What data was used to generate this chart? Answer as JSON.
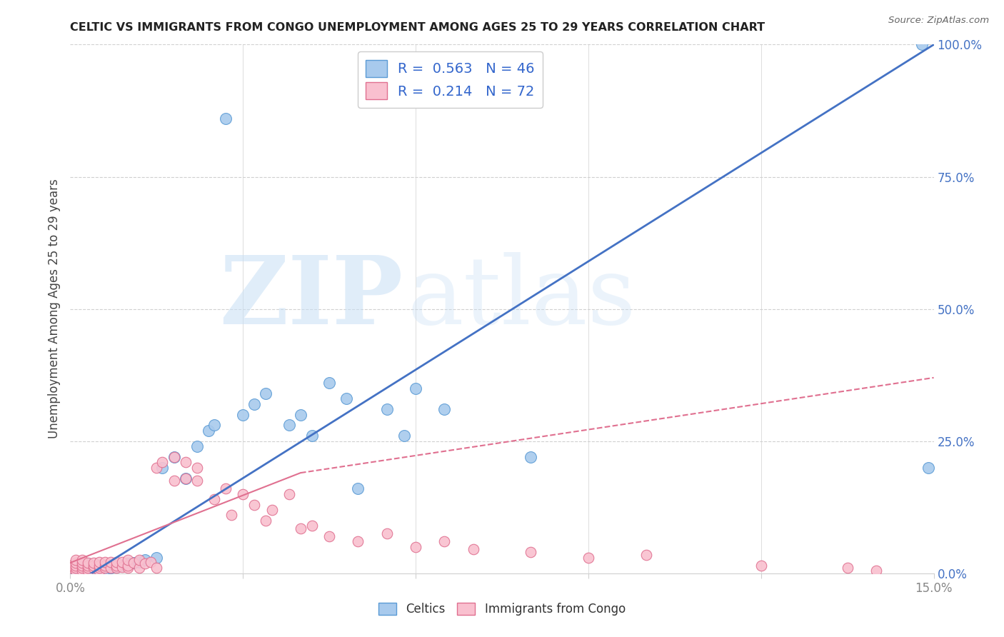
{
  "title": "CELTIC VS IMMIGRANTS FROM CONGO UNEMPLOYMENT AMONG AGES 25 TO 29 YEARS CORRELATION CHART",
  "source": "Source: ZipAtlas.com",
  "ylabel": "Unemployment Among Ages 25 to 29 years",
  "xlim": [
    0,
    0.15
  ],
  "ylim": [
    0,
    1.0
  ],
  "xtick_positions": [
    0.0,
    0.03,
    0.06,
    0.09,
    0.12,
    0.15
  ],
  "xticklabels": [
    "0.0%",
    "",
    "",
    "",
    "",
    "15.0%"
  ],
  "ytick_positions": [
    0.0,
    0.25,
    0.5,
    0.75,
    1.0
  ],
  "yticklabels_right": [
    "0.0%",
    "25.0%",
    "50.0%",
    "75.0%",
    "100.0%"
  ],
  "celtics_color": "#a8caed",
  "celtics_edge_color": "#5b9bd5",
  "congo_color": "#f9c0cf",
  "congo_edge_color": "#e07090",
  "celtics_R": 0.563,
  "celtics_N": 46,
  "congo_R": 0.214,
  "congo_N": 72,
  "celtics_line_color": "#4472c4",
  "congo_line_color": "#e07090",
  "watermark_zip": "ZIP",
  "watermark_atlas": "atlas",
  "background_color": "#ffffff",
  "grid_color": "#d0d0d0",
  "title_color": "#222222",
  "source_color": "#666666",
  "ylabel_color": "#444444",
  "right_tick_color": "#4472c4",
  "bottom_tick_color": "#888888",
  "celtics_x": [
    0.001,
    0.001,
    0.001,
    0.002,
    0.002,
    0.002,
    0.003,
    0.003,
    0.003,
    0.004,
    0.004,
    0.005,
    0.005,
    0.006,
    0.006,
    0.007,
    0.008,
    0.009,
    0.01,
    0.011,
    0.012,
    0.013,
    0.015,
    0.016,
    0.018,
    0.02,
    0.022,
    0.024,
    0.025,
    0.027,
    0.03,
    0.032,
    0.034,
    0.038,
    0.04,
    0.042,
    0.045,
    0.048,
    0.05,
    0.055,
    0.058,
    0.06,
    0.065,
    0.08,
    0.148,
    0.149
  ],
  "celtics_y": [
    0.005,
    0.01,
    0.015,
    0.005,
    0.008,
    0.012,
    0.005,
    0.01,
    0.018,
    0.005,
    0.012,
    0.006,
    0.015,
    0.008,
    0.014,
    0.01,
    0.012,
    0.015,
    0.018,
    0.02,
    0.022,
    0.025,
    0.03,
    0.2,
    0.22,
    0.18,
    0.24,
    0.27,
    0.28,
    0.86,
    0.3,
    0.32,
    0.34,
    0.28,
    0.3,
    0.26,
    0.36,
    0.33,
    0.16,
    0.31,
    0.26,
    0.35,
    0.31,
    0.22,
    1.0,
    0.2
  ],
  "congo_x": [
    0.0,
    0.0,
    0.001,
    0.001,
    0.001,
    0.001,
    0.001,
    0.002,
    0.002,
    0.002,
    0.002,
    0.002,
    0.003,
    0.003,
    0.003,
    0.003,
    0.004,
    0.004,
    0.004,
    0.005,
    0.005,
    0.005,
    0.005,
    0.006,
    0.006,
    0.006,
    0.007,
    0.007,
    0.008,
    0.008,
    0.008,
    0.009,
    0.009,
    0.01,
    0.01,
    0.01,
    0.011,
    0.012,
    0.012,
    0.013,
    0.014,
    0.015,
    0.015,
    0.016,
    0.018,
    0.018,
    0.02,
    0.02,
    0.022,
    0.022,
    0.025,
    0.027,
    0.028,
    0.03,
    0.032,
    0.034,
    0.035,
    0.038,
    0.04,
    0.042,
    0.045,
    0.05,
    0.055,
    0.06,
    0.065,
    0.07,
    0.08,
    0.09,
    0.1,
    0.12,
    0.135,
    0.14
  ],
  "congo_y": [
    0.01,
    0.015,
    0.005,
    0.01,
    0.015,
    0.02,
    0.025,
    0.005,
    0.01,
    0.015,
    0.02,
    0.025,
    0.005,
    0.01,
    0.015,
    0.02,
    0.01,
    0.015,
    0.02,
    0.005,
    0.01,
    0.015,
    0.022,
    0.01,
    0.015,
    0.022,
    0.01,
    0.022,
    0.01,
    0.015,
    0.022,
    0.012,
    0.022,
    0.01,
    0.015,
    0.025,
    0.02,
    0.01,
    0.025,
    0.018,
    0.022,
    0.01,
    0.2,
    0.21,
    0.175,
    0.22,
    0.18,
    0.21,
    0.175,
    0.2,
    0.14,
    0.16,
    0.11,
    0.15,
    0.13,
    0.1,
    0.12,
    0.15,
    0.085,
    0.09,
    0.07,
    0.06,
    0.075,
    0.05,
    0.06,
    0.045,
    0.04,
    0.03,
    0.035,
    0.015,
    0.01,
    0.005
  ],
  "celtics_trendline": [
    0.0,
    0.15,
    -0.025,
    1.0
  ],
  "congo_trendline_solid": [
    0.0,
    0.04,
    0.02,
    0.19
  ],
  "congo_trendline_dashed": [
    0.04,
    0.15,
    0.19,
    0.37
  ]
}
